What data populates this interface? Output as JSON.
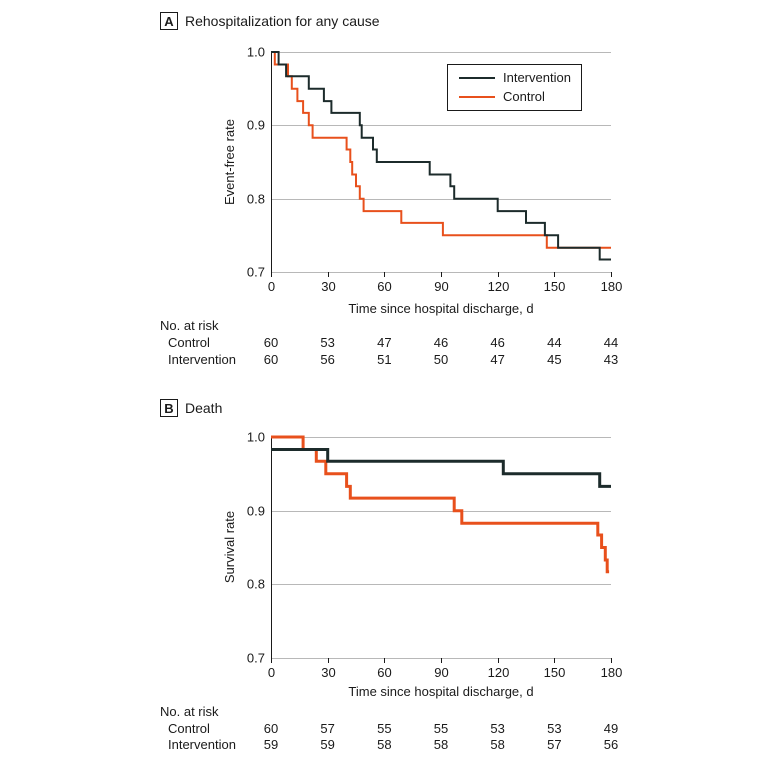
{
  "colors": {
    "intervention": "#1c2b2b",
    "control": "#e8501c",
    "grid": "#b8b8b8"
  },
  "chart_data": [
    {
      "type": "line",
      "panel_letter": "A",
      "title": "Rehospitalization for any cause",
      "xlabel": "Time since hospital discharge, d",
      "ylabel": "Event-free rate",
      "xlim": [
        0,
        180
      ],
      "ylim": [
        0.7,
        1.0
      ],
      "xticks": [
        0,
        30,
        60,
        90,
        120,
        150,
        180
      ],
      "yticks": [
        0.7,
        0.8,
        0.9,
        1.0
      ],
      "ytick_labels": [
        "0.7",
        "0.8",
        "0.9",
        "1.0"
      ],
      "grid": true,
      "legend": {
        "position": "top-right",
        "entries": [
          "Intervention",
          "Control"
        ]
      },
      "series": [
        {
          "name": "Intervention",
          "color_key": "intervention",
          "line_width": 2,
          "points": [
            [
              0,
              1.0
            ],
            [
              4,
              1.0
            ],
            [
              4,
              0.983
            ],
            [
              8,
              0.983
            ],
            [
              8,
              0.967
            ],
            [
              20,
              0.967
            ],
            [
              20,
              0.95
            ],
            [
              28,
              0.95
            ],
            [
              28,
              0.933
            ],
            [
              32,
              0.933
            ],
            [
              32,
              0.917
            ],
            [
              47,
              0.917
            ],
            [
              47,
              0.9
            ],
            [
              48,
              0.9
            ],
            [
              48,
              0.883
            ],
            [
              54,
              0.883
            ],
            [
              54,
              0.867
            ],
            [
              56,
              0.867
            ],
            [
              56,
              0.85
            ],
            [
              84,
              0.85
            ],
            [
              84,
              0.833
            ],
            [
              95,
              0.833
            ],
            [
              95,
              0.817
            ],
            [
              97,
              0.817
            ],
            [
              97,
              0.8
            ],
            [
              120,
              0.8
            ],
            [
              120,
              0.783
            ],
            [
              135,
              0.783
            ],
            [
              135,
              0.767
            ],
            [
              145,
              0.767
            ],
            [
              145,
              0.75
            ],
            [
              152,
              0.75
            ],
            [
              152,
              0.733
            ],
            [
              174,
              0.733
            ],
            [
              174,
              0.717
            ],
            [
              180,
              0.717
            ]
          ]
        },
        {
          "name": "Control",
          "color_key": "control",
          "line_width": 2,
          "points": [
            [
              0,
              1.0
            ],
            [
              2,
              1.0
            ],
            [
              2,
              0.983
            ],
            [
              9,
              0.983
            ],
            [
              9,
              0.967
            ],
            [
              11,
              0.967
            ],
            [
              11,
              0.95
            ],
            [
              14,
              0.95
            ],
            [
              14,
              0.933
            ],
            [
              17,
              0.933
            ],
            [
              17,
              0.917
            ],
            [
              20,
              0.917
            ],
            [
              20,
              0.9
            ],
            [
              22,
              0.9
            ],
            [
              22,
              0.883
            ],
            [
              40,
              0.883
            ],
            [
              40,
              0.867
            ],
            [
              42,
              0.867
            ],
            [
              42,
              0.85
            ],
            [
              43,
              0.85
            ],
            [
              43,
              0.833
            ],
            [
              45,
              0.833
            ],
            [
              45,
              0.817
            ],
            [
              47,
              0.817
            ],
            [
              47,
              0.8
            ],
            [
              49,
              0.8
            ],
            [
              49,
              0.783
            ],
            [
              69,
              0.783
            ],
            [
              69,
              0.767
            ],
            [
              91,
              0.767
            ],
            [
              91,
              0.75
            ],
            [
              146,
              0.75
            ],
            [
              146,
              0.733
            ],
            [
              180,
              0.733
            ]
          ]
        }
      ],
      "at_risk": {
        "heading": "No. at risk",
        "rows": [
          {
            "label": "Control",
            "values": [
              60,
              53,
              47,
              46,
              46,
              44,
              44
            ]
          },
          {
            "label": "Intervention",
            "values": [
              60,
              56,
              51,
              50,
              47,
              45,
              43
            ]
          }
        ]
      }
    },
    {
      "type": "line",
      "panel_letter": "B",
      "title": "Death",
      "xlabel": "Time since hospital discharge, d",
      "ylabel": "Survival rate",
      "xlim": [
        0,
        180
      ],
      "ylim": [
        0.7,
        1.0
      ],
      "xticks": [
        0,
        30,
        60,
        90,
        120,
        150,
        180
      ],
      "yticks": [
        0.7,
        0.8,
        0.9,
        1.0
      ],
      "ytick_labels": [
        "0.7",
        "0.8",
        "0.9",
        "1.0"
      ],
      "grid": true,
      "legend": null,
      "series": [
        {
          "name": "Intervention",
          "color_key": "intervention",
          "line_width": 3,
          "points": [
            [
              0,
              0.983
            ],
            [
              30,
              0.983
            ],
            [
              30,
              0.967
            ],
            [
              123,
              0.967
            ],
            [
              123,
              0.95
            ],
            [
              174,
              0.95
            ],
            [
              174,
              0.933
            ],
            [
              180,
              0.933
            ]
          ]
        },
        {
          "name": "Control",
          "color_key": "control",
          "line_width": 3,
          "points": [
            [
              0,
              1.0
            ],
            [
              17,
              1.0
            ],
            [
              17,
              0.983
            ],
            [
              24,
              0.983
            ],
            [
              24,
              0.967
            ],
            [
              29,
              0.967
            ],
            [
              29,
              0.95
            ],
            [
              40,
              0.95
            ],
            [
              40,
              0.933
            ],
            [
              42,
              0.933
            ],
            [
              42,
              0.917
            ],
            [
              97,
              0.917
            ],
            [
              97,
              0.9
            ],
            [
              101,
              0.9
            ],
            [
              101,
              0.883
            ],
            [
              173,
              0.883
            ],
            [
              173,
              0.867
            ],
            [
              175,
              0.867
            ],
            [
              175,
              0.85
            ],
            [
              177,
              0.85
            ],
            [
              177,
              0.833
            ],
            [
              178,
              0.833
            ],
            [
              178,
              0.817
            ],
            [
              179,
              0.817
            ]
          ]
        }
      ],
      "at_risk": {
        "heading": "No. at risk",
        "rows": [
          {
            "label": "Control",
            "values": [
              60,
              57,
              55,
              55,
              53,
              53,
              49
            ]
          },
          {
            "label": "Intervention",
            "values": [
              59,
              59,
              58,
              58,
              58,
              57,
              56
            ]
          }
        ]
      }
    }
  ]
}
